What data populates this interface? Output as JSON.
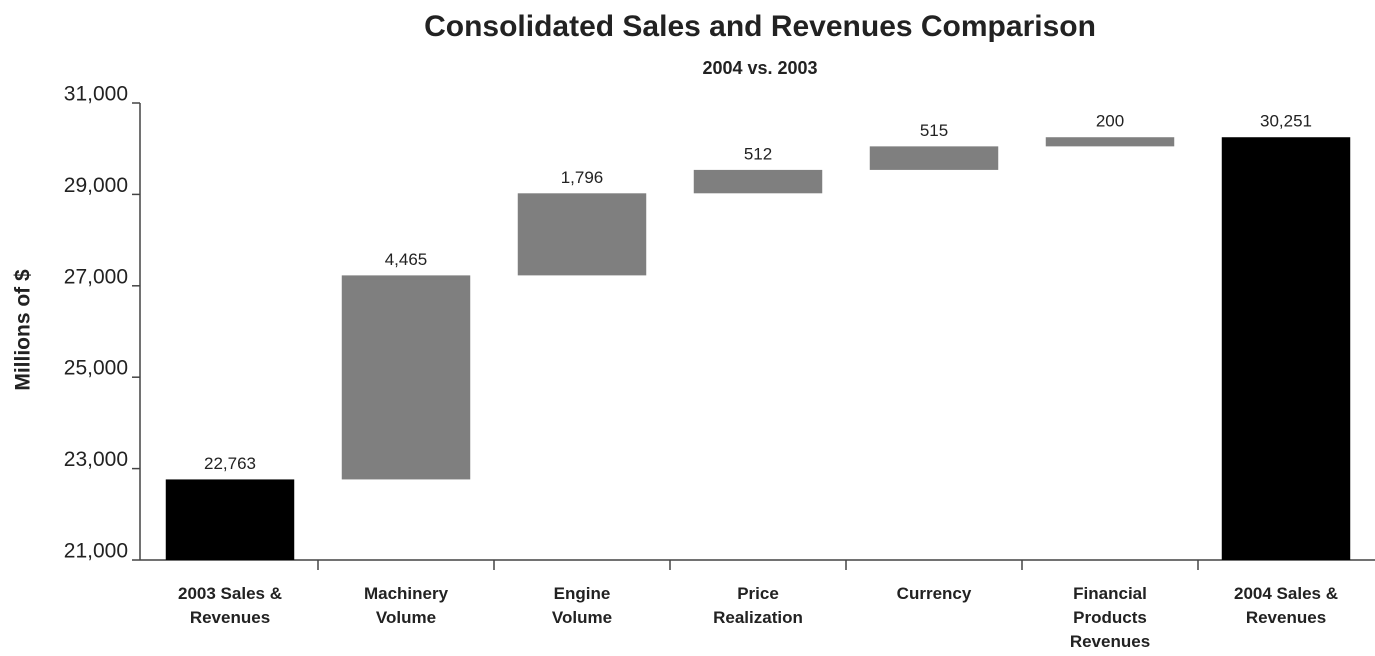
{
  "chart_data": {
    "type": "waterfall",
    "title": "Consolidated Sales and Revenues Comparison",
    "subtitle": "2004 vs. 2003",
    "y_label": "Millions of $",
    "categories": [
      "2003 Sales &\nRevenues",
      "Machinery\nVolume",
      "Engine\nVolume",
      "Price\nRealization",
      "Currency",
      "Financial\nProducts\nRevenues",
      "2004 Sales &\nRevenues"
    ],
    "values": [
      22763,
      4465,
      1796,
      512,
      515,
      200,
      30251
    ],
    "value_labels": [
      "22,763",
      "4,465",
      "1,796",
      "512",
      "515",
      "200",
      "30,251"
    ],
    "is_total": [
      true,
      false,
      false,
      false,
      false,
      false,
      true
    ],
    "color": "#7f7f7f",
    "total_color": "#000000",
    "ylim": [
      21000,
      31000
    ],
    "yticks": [
      {
        "value": 21000,
        "label": "21,000"
      },
      {
        "value": 23000,
        "label": "23,000"
      },
      {
        "value": 25000,
        "label": "25,000"
      },
      {
        "value": 27000,
        "label": "27,000"
      },
      {
        "value": 29000,
        "label": "29,000"
      },
      {
        "value": 31000,
        "label": "31,000"
      }
    ],
    "grid": false
  }
}
